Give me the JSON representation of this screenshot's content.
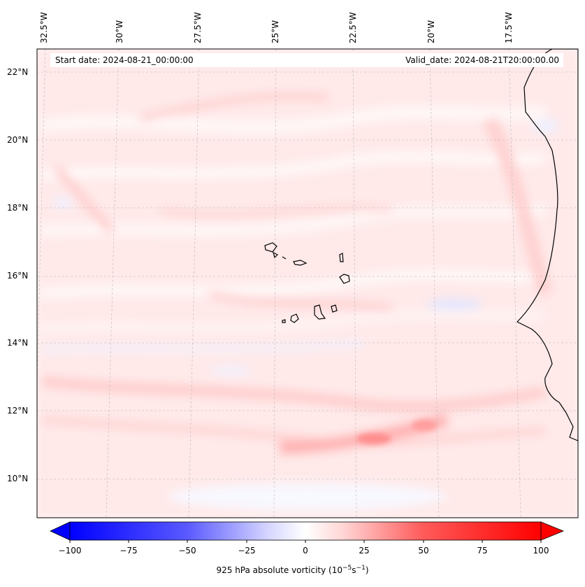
{
  "map": {
    "lon_labels": [
      "32.5°W",
      "30°W",
      "27.5°W",
      "25°W",
      "22.5°W",
      "20°W",
      "17.5°W"
    ],
    "lat_labels": [
      "22°N",
      "20°N",
      "18°N",
      "16°N",
      "14°N",
      "12°N",
      "10°N"
    ],
    "start_date": "Start date: 2024-08-21_00:00:00",
    "valid_date": "Valid_date: 2024-08-21T20:00:00.00"
  },
  "colorbar": {
    "ticks": [
      "−100",
      "−75",
      "−50",
      "−25",
      "0",
      "25",
      "50",
      "75",
      "100"
    ],
    "label": "925 hPa absolute vorticity (10",
    "label_exp1": "−5",
    "label_mid": "s",
    "label_exp2": "−1",
    "label_end": ")",
    "min_color": "#0000ff",
    "max_color": "#ff0000"
  }
}
